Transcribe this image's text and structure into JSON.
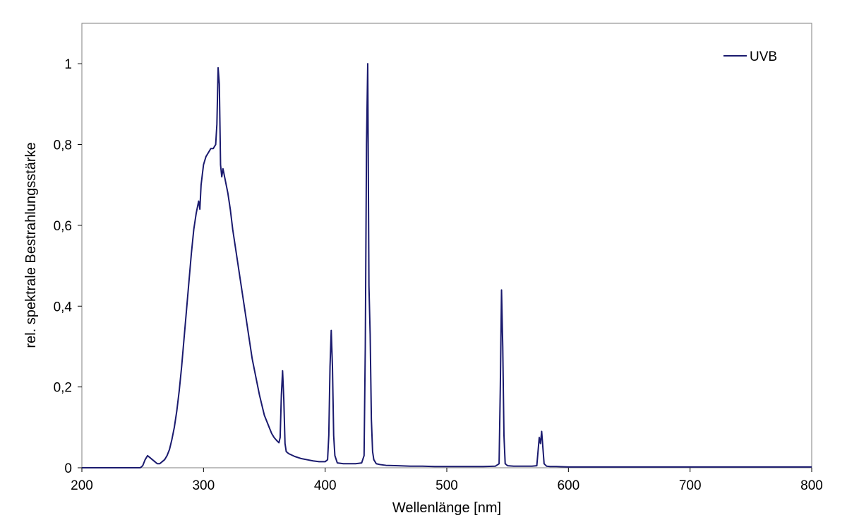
{
  "chart_data": {
    "type": "line",
    "title": "",
    "xlabel": "Wellenlänge [nm]",
    "ylabel": "rel. spektrale Bestrahlungsstärke",
    "xlim": [
      200,
      800
    ],
    "ylim": [
      0,
      1.1
    ],
    "xticks": [
      200,
      300,
      400,
      500,
      600,
      700,
      800
    ],
    "xtick_labels": [
      "200",
      "300",
      "400",
      "500",
      "600",
      "700",
      "800"
    ],
    "yticks": [
      0,
      0.2,
      0.4,
      0.6,
      0.8,
      1
    ],
    "ytick_labels": [
      "0",
      "0,2",
      "0,4",
      "0,6",
      "0,8",
      "1"
    ],
    "grid": false,
    "legend_position": "top-right",
    "series": [
      {
        "name": "UVB",
        "color": "#1a1a6e",
        "x": [
          200,
          248,
          250,
          252,
          254,
          256,
          258,
          260,
          262,
          264,
          266,
          268,
          270,
          272,
          274,
          276,
          278,
          280,
          282,
          284,
          286,
          288,
          290,
          292,
          294,
          296,
          297,
          298,
          300,
          302,
          304,
          306,
          308,
          310,
          311,
          312,
          313,
          314,
          315,
          316,
          318,
          320,
          322,
          324,
          326,
          328,
          330,
          332,
          334,
          336,
          338,
          340,
          342,
          344,
          346,
          348,
          350,
          352,
          354,
          356,
          358,
          360,
          362,
          363,
          364,
          365,
          366,
          367,
          368,
          370,
          375,
          380,
          385,
          390,
          395,
          400,
          402,
          403,
          404,
          405,
          406,
          407,
          408,
          410,
          415,
          420,
          425,
          430,
          432,
          433,
          434,
          435,
          436,
          437,
          438,
          439,
          440,
          442,
          445,
          450,
          460,
          470,
          480,
          490,
          500,
          510,
          520,
          530,
          540,
          543,
          544,
          545,
          546,
          547,
          548,
          550,
          555,
          560,
          565,
          570,
          574,
          575,
          576,
          577,
          578,
          579,
          580,
          582,
          585,
          590,
          600,
          620,
          650,
          700,
          750,
          800
        ],
        "y": [
          0,
          0,
          0.005,
          0.02,
          0.03,
          0.025,
          0.02,
          0.015,
          0.01,
          0.01,
          0.015,
          0.02,
          0.03,
          0.045,
          0.07,
          0.1,
          0.14,
          0.19,
          0.25,
          0.32,
          0.39,
          0.46,
          0.53,
          0.59,
          0.63,
          0.66,
          0.64,
          0.7,
          0.75,
          0.77,
          0.78,
          0.79,
          0.79,
          0.8,
          0.85,
          0.99,
          0.95,
          0.75,
          0.72,
          0.74,
          0.71,
          0.68,
          0.64,
          0.59,
          0.55,
          0.51,
          0.47,
          0.43,
          0.39,
          0.35,
          0.31,
          0.27,
          0.24,
          0.21,
          0.18,
          0.155,
          0.13,
          0.115,
          0.1,
          0.085,
          0.075,
          0.068,
          0.062,
          0.075,
          0.18,
          0.24,
          0.17,
          0.06,
          0.04,
          0.035,
          0.028,
          0.023,
          0.02,
          0.017,
          0.015,
          0.015,
          0.02,
          0.08,
          0.25,
          0.34,
          0.25,
          0.08,
          0.03,
          0.012,
          0.01,
          0.01,
          0.01,
          0.012,
          0.03,
          0.3,
          0.8,
          1.0,
          0.45,
          0.33,
          0.12,
          0.04,
          0.02,
          0.01,
          0.008,
          0.006,
          0.005,
          0.004,
          0.004,
          0.003,
          0.003,
          0.003,
          0.003,
          0.003,
          0.004,
          0.01,
          0.2,
          0.44,
          0.3,
          0.08,
          0.01,
          0.005,
          0.004,
          0.004,
          0.004,
          0.004,
          0.005,
          0.04,
          0.075,
          0.06,
          0.09,
          0.05,
          0.01,
          0.004,
          0.003,
          0.003,
          0.002,
          0.002,
          0.002,
          0.002,
          0.002,
          0.002
        ]
      }
    ]
  }
}
